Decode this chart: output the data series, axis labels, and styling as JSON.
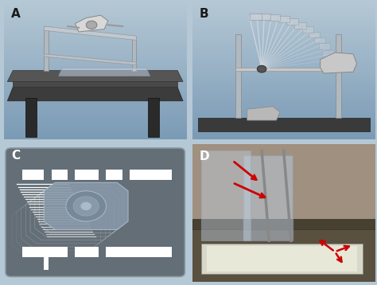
{
  "background_color": "#b5c8d5",
  "panel_labels": [
    "A",
    "B",
    "C",
    "D"
  ],
  "label_fontsize": 11,
  "label_color": "#1a1a1a",
  "label_fontweight": "bold",
  "panel_A_bg_top": "#8daec4",
  "panel_A_bg_bot": "#b8ccd8",
  "panel_B_bg": "#a8c0d0",
  "panel_C_bg": "#8fa0aa",
  "panel_C_inner": "#6a7880",
  "panel_D_bg": "#6a5a4a",
  "figwidth": 4.74,
  "figheight": 3.58,
  "dpi": 100,
  "arrow_color": "#cc0000"
}
